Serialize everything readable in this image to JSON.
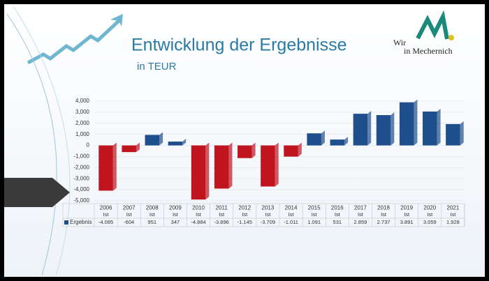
{
  "chart_data": {
    "type": "bar",
    "title": "Entwicklung der Ergebnisse",
    "subtitle": "in TEUR",
    "logo": {
      "line1": "Wir",
      "line2": "in Mechernich"
    },
    "categories": [
      "2006",
      "2007",
      "2008",
      "2009",
      "2010",
      "2011",
      "2012",
      "2013",
      "2014",
      "2015",
      "2016",
      "2017",
      "2018",
      "2019",
      "2020",
      "2021"
    ],
    "category_sublabels": [
      "Ist",
      "Ist",
      "Ist",
      "Ist",
      "Ist",
      "Ist",
      "Ist",
      "Ist",
      "Ist",
      "Ist",
      "Ist",
      "Ist",
      "Ist",
      "Ist",
      "Ist",
      "Ist"
    ],
    "series": [
      {
        "name": "Ergebnis",
        "color": "#1f4e8c",
        "negative_color": "#c0141e",
        "values": [
          -4085,
          -604,
          951,
          347,
          -4884,
          -3896,
          -1145,
          -3709,
          -1011,
          1091,
          531,
          2859,
          2737,
          3891,
          3059,
          1928
        ],
        "value_labels": [
          "-4.085",
          "-604",
          "951",
          "347",
          "-4.884",
          "-3.896",
          "-1.145",
          "-3.709",
          "-1.011",
          "1.091",
          "531",
          "2.859",
          "2.737",
          "3.891",
          "3.059",
          "1.928"
        ]
      }
    ],
    "ylim": [
      -5000,
      4000
    ],
    "yticks": [
      {
        "value": 4000,
        "label": "4,000"
      },
      {
        "value": 3000,
        "label": "3,000"
      },
      {
        "value": 2000,
        "label": "2,000"
      },
      {
        "value": 1000,
        "label": "1,000"
      },
      0,
      {
        "value": -1000,
        "label": "-1,000"
      },
      {
        "value": -2000,
        "label": "-2,000"
      },
      {
        "value": -3000,
        "label": "-3,000"
      },
      {
        "value": -4000,
        "label": "-4,000"
      },
      {
        "value": -5000,
        "label": "-5,000"
      }
    ],
    "grid": true
  }
}
